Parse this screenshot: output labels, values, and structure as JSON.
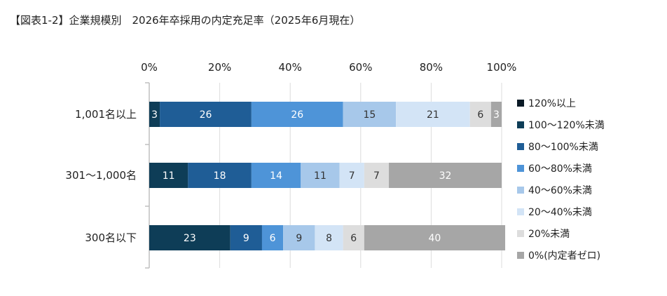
{
  "title": "【図表1-2】企業規模別　2026年卒採用の内定充足率（2025年6月現在）",
  "chart_data": {
    "type": "bar",
    "orientation": "horizontal",
    "stacked": true,
    "title": "【図表1-2】企業規模別　2026年卒採用の内定充足率（2025年6月現在）",
    "x_ticks": [
      "0%",
      "20%",
      "40%",
      "60%",
      "80%",
      "100%"
    ],
    "xlim": [
      0,
      100
    ],
    "grid": true,
    "legend_position": "right",
    "categories": [
      "1,001名以上",
      "301～1,000名",
      "300名以下"
    ],
    "series": [
      {
        "name": "120%以上",
        "color": "#0a1a26",
        "label_color": "#ffffff",
        "values": [
          0,
          0,
          0
        ]
      },
      {
        "name": "100～120%未満",
        "color": "#0e3d57",
        "label_color": "#ffffff",
        "values": [
          3,
          11,
          23
        ]
      },
      {
        "name": "80～100%未満",
        "color": "#1f5d96",
        "label_color": "#ffffff",
        "values": [
          26,
          18,
          9
        ]
      },
      {
        "name": "60～80%未満",
        "color": "#4e94d8",
        "label_color": "#ffffff",
        "values": [
          26,
          14,
          6
        ]
      },
      {
        "name": "40～60%未満",
        "color": "#a7c8ea",
        "label_color": "#333333",
        "values": [
          15,
          11,
          9
        ]
      },
      {
        "name": "20～40%未満",
        "color": "#d3e4f6",
        "label_color": "#333333",
        "values": [
          21,
          7,
          8
        ]
      },
      {
        "name": "20%未満",
        "color": "#dddddd",
        "label_color": "#333333",
        "values": [
          6,
          7,
          6
        ]
      },
      {
        "name": "0%(内定者ゼロ)",
        "color": "#a6a6a6",
        "label_color": "#ffffff",
        "values": [
          3,
          32,
          40
        ]
      }
    ]
  }
}
